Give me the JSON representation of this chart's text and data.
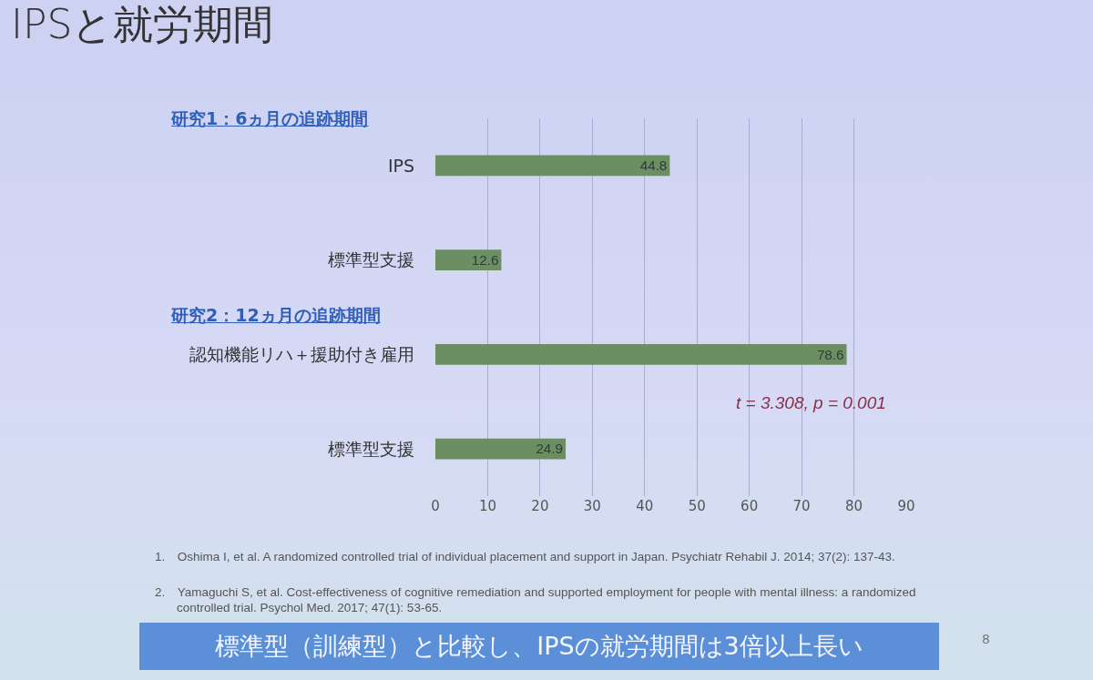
{
  "chart_data": {
    "type": "bar",
    "orientation": "horizontal",
    "title": "IPSと就労期間",
    "categories": [
      "IPS",
      "標準型支援",
      "認知機能リハ＋援助付き雇用",
      "標準型支援"
    ],
    "values": [
      44.8,
      12.6,
      78.6,
      24.9
    ],
    "color": "#6b8f63",
    "data_labels": true,
    "xlim": [
      0,
      90
    ],
    "xticks": [
      0,
      10,
      20,
      30,
      40,
      50,
      60,
      70,
      80,
      90
    ],
    "grid": "x",
    "annotations": [
      "研究1：6ヵ月の追跡期間",
      "研究2：12ヵ月の追跡期間",
      "t = 3.308, p = 0.001",
      "1. Oshima I, et al. A randomized controlled trial of individual placement and support in Japan. Psychiatr Rehabil J. 2014; 37(2): 137-43.",
      "2. Yamaguchi S, et al. Cost-effectiveness of cognitive remediation and supported employment for people with mental illness: a randomized controlled trial. Psychol Med. 2017; 47(1): 53-65.",
      "標準型（訓練型）と比較し、IPSの就労期間は3倍以上長い",
      "8"
    ]
  }
}
